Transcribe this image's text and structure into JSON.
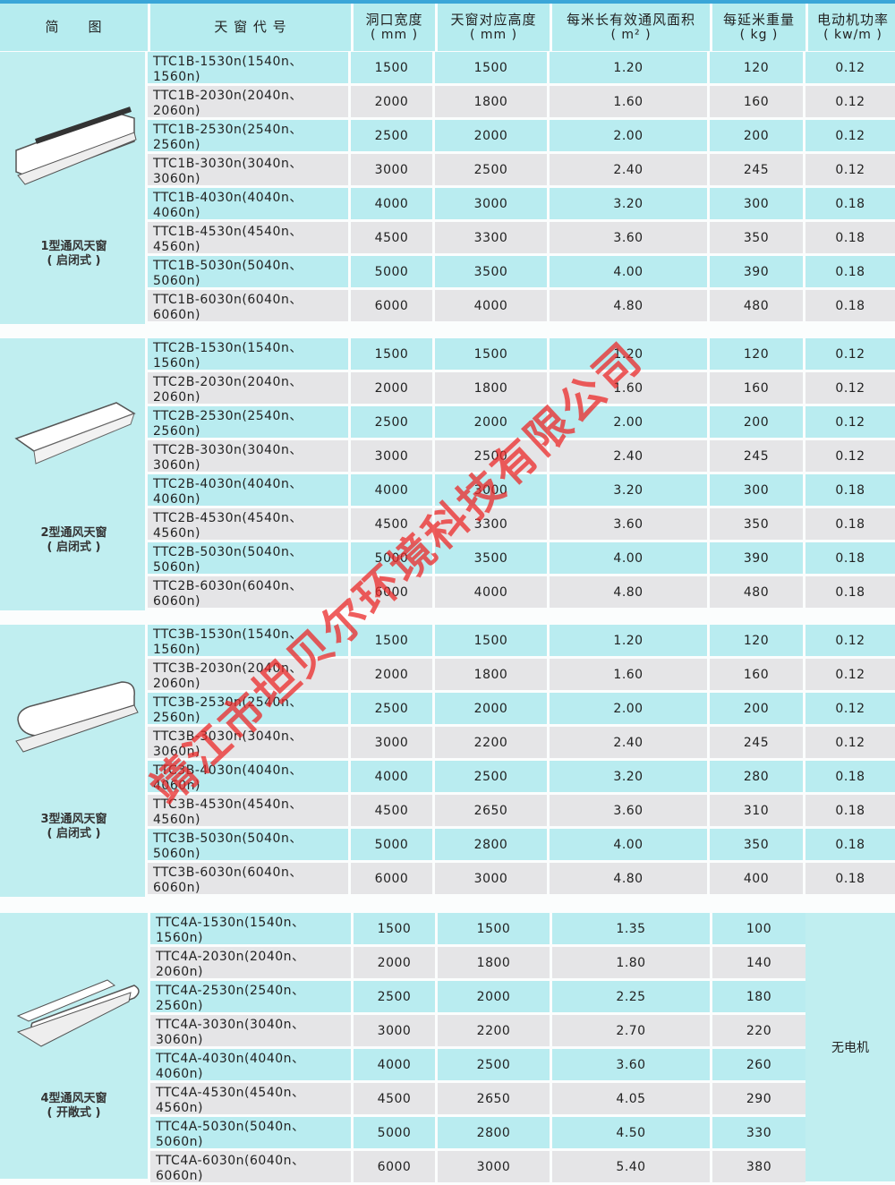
{
  "header": [
    "简　　图",
    "天 窗 代 号",
    "洞口宽度\n(mm)",
    "天窗对应高度\n(mm)",
    "每米长有效通风面积\n(m²)",
    "每延米重量\n(kg)",
    "电动机功率\n(kw/m)"
  ],
  "groups": [
    {
      "name": "1型通风天窗",
      "sub": "( 启闭式 )",
      "prefix": "TTC1B",
      "heights": [
        "1500",
        "1800",
        "2000",
        "2500",
        "3000",
        "3300",
        "3500",
        "4000"
      ],
      "areas": [
        "1.20",
        "1.60",
        "2.00",
        "2.40",
        "3.20",
        "3.60",
        "4.00",
        "4.80"
      ],
      "weights": [
        "120",
        "160",
        "200",
        "245",
        "300",
        "350",
        "390",
        "480"
      ],
      "powers": [
        "0.12",
        "0.12",
        "0.12",
        "0.12",
        "0.18",
        "0.18",
        "0.18",
        "0.18"
      ]
    },
    {
      "name": "2型通风天窗",
      "sub": "( 启闭式 )",
      "prefix": "TTC2B",
      "heights": [
        "1500",
        "1800",
        "2000",
        "2500",
        "3000",
        "3300",
        "3500",
        "4000"
      ],
      "areas": [
        "1.20",
        "1.60",
        "2.00",
        "2.40",
        "3.20",
        "3.60",
        "4.00",
        "4.80"
      ],
      "weights": [
        "120",
        "160",
        "200",
        "245",
        "300",
        "350",
        "390",
        "480"
      ],
      "powers": [
        "0.12",
        "0.12",
        "0.12",
        "0.12",
        "0.18",
        "0.18",
        "0.18",
        "0.18"
      ]
    },
    {
      "name": "3型通风天窗",
      "sub": "( 启闭式 )",
      "prefix": "TTC3B",
      "heights": [
        "1500",
        "1800",
        "2000",
        "2200",
        "2500",
        "2650",
        "2800",
        "3000"
      ],
      "areas": [
        "1.20",
        "1.60",
        "2.00",
        "2.40",
        "3.20",
        "3.60",
        "4.00",
        "4.80"
      ],
      "weights": [
        "120",
        "160",
        "200",
        "245",
        "280",
        "310",
        "350",
        "400"
      ],
      "powers": [
        "0.12",
        "0.12",
        "0.12",
        "0.12",
        "0.18",
        "0.18",
        "0.18",
        "0.18"
      ]
    },
    {
      "name": "4型通风天窗",
      "sub": "( 开敞式 )",
      "prefix": "TTC4A",
      "heights": [
        "1500",
        "1800",
        "2000",
        "2200",
        "2500",
        "2650",
        "2800",
        "3000"
      ],
      "areas": [
        "1.35",
        "1.80",
        "2.25",
        "2.70",
        "3.60",
        "4.05",
        "4.50",
        "5.40"
      ],
      "weights": [
        "100",
        "140",
        "180",
        "220",
        "260",
        "290",
        "330",
        "380"
      ],
      "no_motor": "无电机"
    }
  ],
  "codes": [
    "1530n(1540n、1560n)",
    "2030n(2040n、2060n)",
    "2530n(2540n、2560n)",
    "3030n(3040n、3060n)",
    "4030n(4040n、4060n)",
    "4530n(4540n、4560n)",
    "5030n(5040n、5060n)",
    "6030n(6040n、6060n)"
  ],
  "widths": [
    "1500",
    "2000",
    "2500",
    "3000",
    "4000",
    "4500",
    "5000",
    "6000"
  ],
  "watermark": "靖江市坦贝尔环境科技有限公司"
}
